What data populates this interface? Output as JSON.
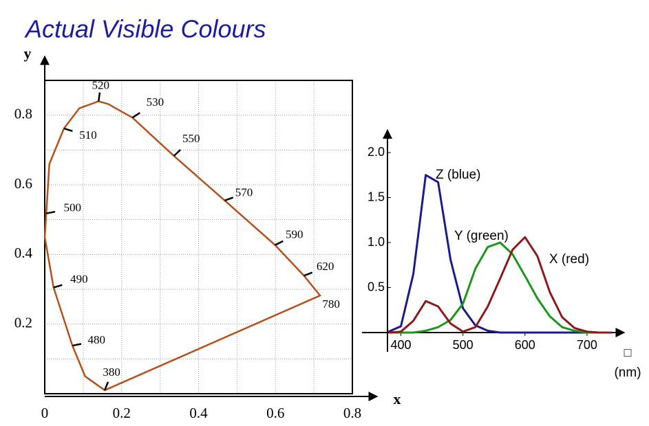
{
  "chart_data": [
    {
      "type": "line",
      "title": "Actual Visible Colours",
      "xlabel": "x",
      "ylabel": "y",
      "color": "#b4501e",
      "x": [
        0.156,
        0.105,
        0.072,
        0.023,
        0.0,
        0.004,
        0.012,
        0.05,
        0.09,
        0.14,
        0.165,
        0.228,
        0.336,
        0.468,
        0.599,
        0.674,
        0.716
      ],
      "values": [
        0.01,
        0.05,
        0.138,
        0.305,
        0.45,
        0.518,
        0.66,
        0.762,
        0.82,
        0.84,
        0.832,
        0.793,
        0.683,
        0.555,
        0.427,
        0.339,
        0.282
      ],
      "point_labels": [
        "380",
        null,
        "480",
        "490",
        null,
        "500",
        null,
        "510",
        null,
        "520",
        null,
        "530",
        "550",
        "570",
        "590",
        "620",
        "780"
      ],
      "xlim": [
        0,
        0.8
      ],
      "ylim": [
        0,
        0.9
      ],
      "xticks": [
        0,
        0.2,
        0.4,
        0.6,
        0.8
      ],
      "yticks": [
        0.2,
        0.4,
        0.6,
        0.8
      ],
      "xgrid": [
        0.1,
        0.2,
        0.3,
        0.4,
        0.5,
        0.6,
        0.7
      ],
      "ygrid": [
        0.1,
        0.2,
        0.3,
        0.4,
        0.5,
        0.6,
        0.7,
        0.8
      ],
      "grid": true
    },
    {
      "type": "line",
      "xlabel_symbol": "□",
      "xlabel": "(nm)",
      "x": [
        380,
        400,
        420,
        440,
        460,
        480,
        500,
        520,
        540,
        560,
        580,
        600,
        620,
        640,
        660,
        680,
        700,
        720,
        740
      ],
      "series": [
        {
          "name": "Z (blue)",
          "color": "#1a1a8c",
          "values": [
            0.01,
            0.07,
            0.65,
            1.75,
            1.67,
            0.81,
            0.27,
            0.08,
            0.02,
            0,
            0,
            0,
            0,
            0,
            0,
            0,
            0,
            0,
            0
          ]
        },
        {
          "name": "Y (green)",
          "color": "#1a961a",
          "values": [
            0,
            0,
            0,
            0.02,
            0.06,
            0.14,
            0.32,
            0.71,
            0.95,
            1.0,
            0.87,
            0.63,
            0.38,
            0.18,
            0.06,
            0.02,
            0,
            0,
            0
          ]
        },
        {
          "name": "X (red)",
          "color": "#8b1a1a",
          "values": [
            0,
            0.01,
            0.13,
            0.35,
            0.29,
            0.1,
            0.01,
            0.06,
            0.29,
            0.6,
            0.92,
            1.06,
            0.85,
            0.45,
            0.17,
            0.05,
            0.01,
            0,
            0
          ]
        }
      ],
      "xlim": [
        375,
        760
      ],
      "ylim": [
        0,
        2.25
      ],
      "xticks": [
        400,
        500,
        600,
        700
      ],
      "yticks": [
        {
          "value": 2,
          "label": "2.0"
        },
        1.5,
        {
          "value": 1,
          "label": "1.0"
        },
        0.5
      ]
    }
  ]
}
